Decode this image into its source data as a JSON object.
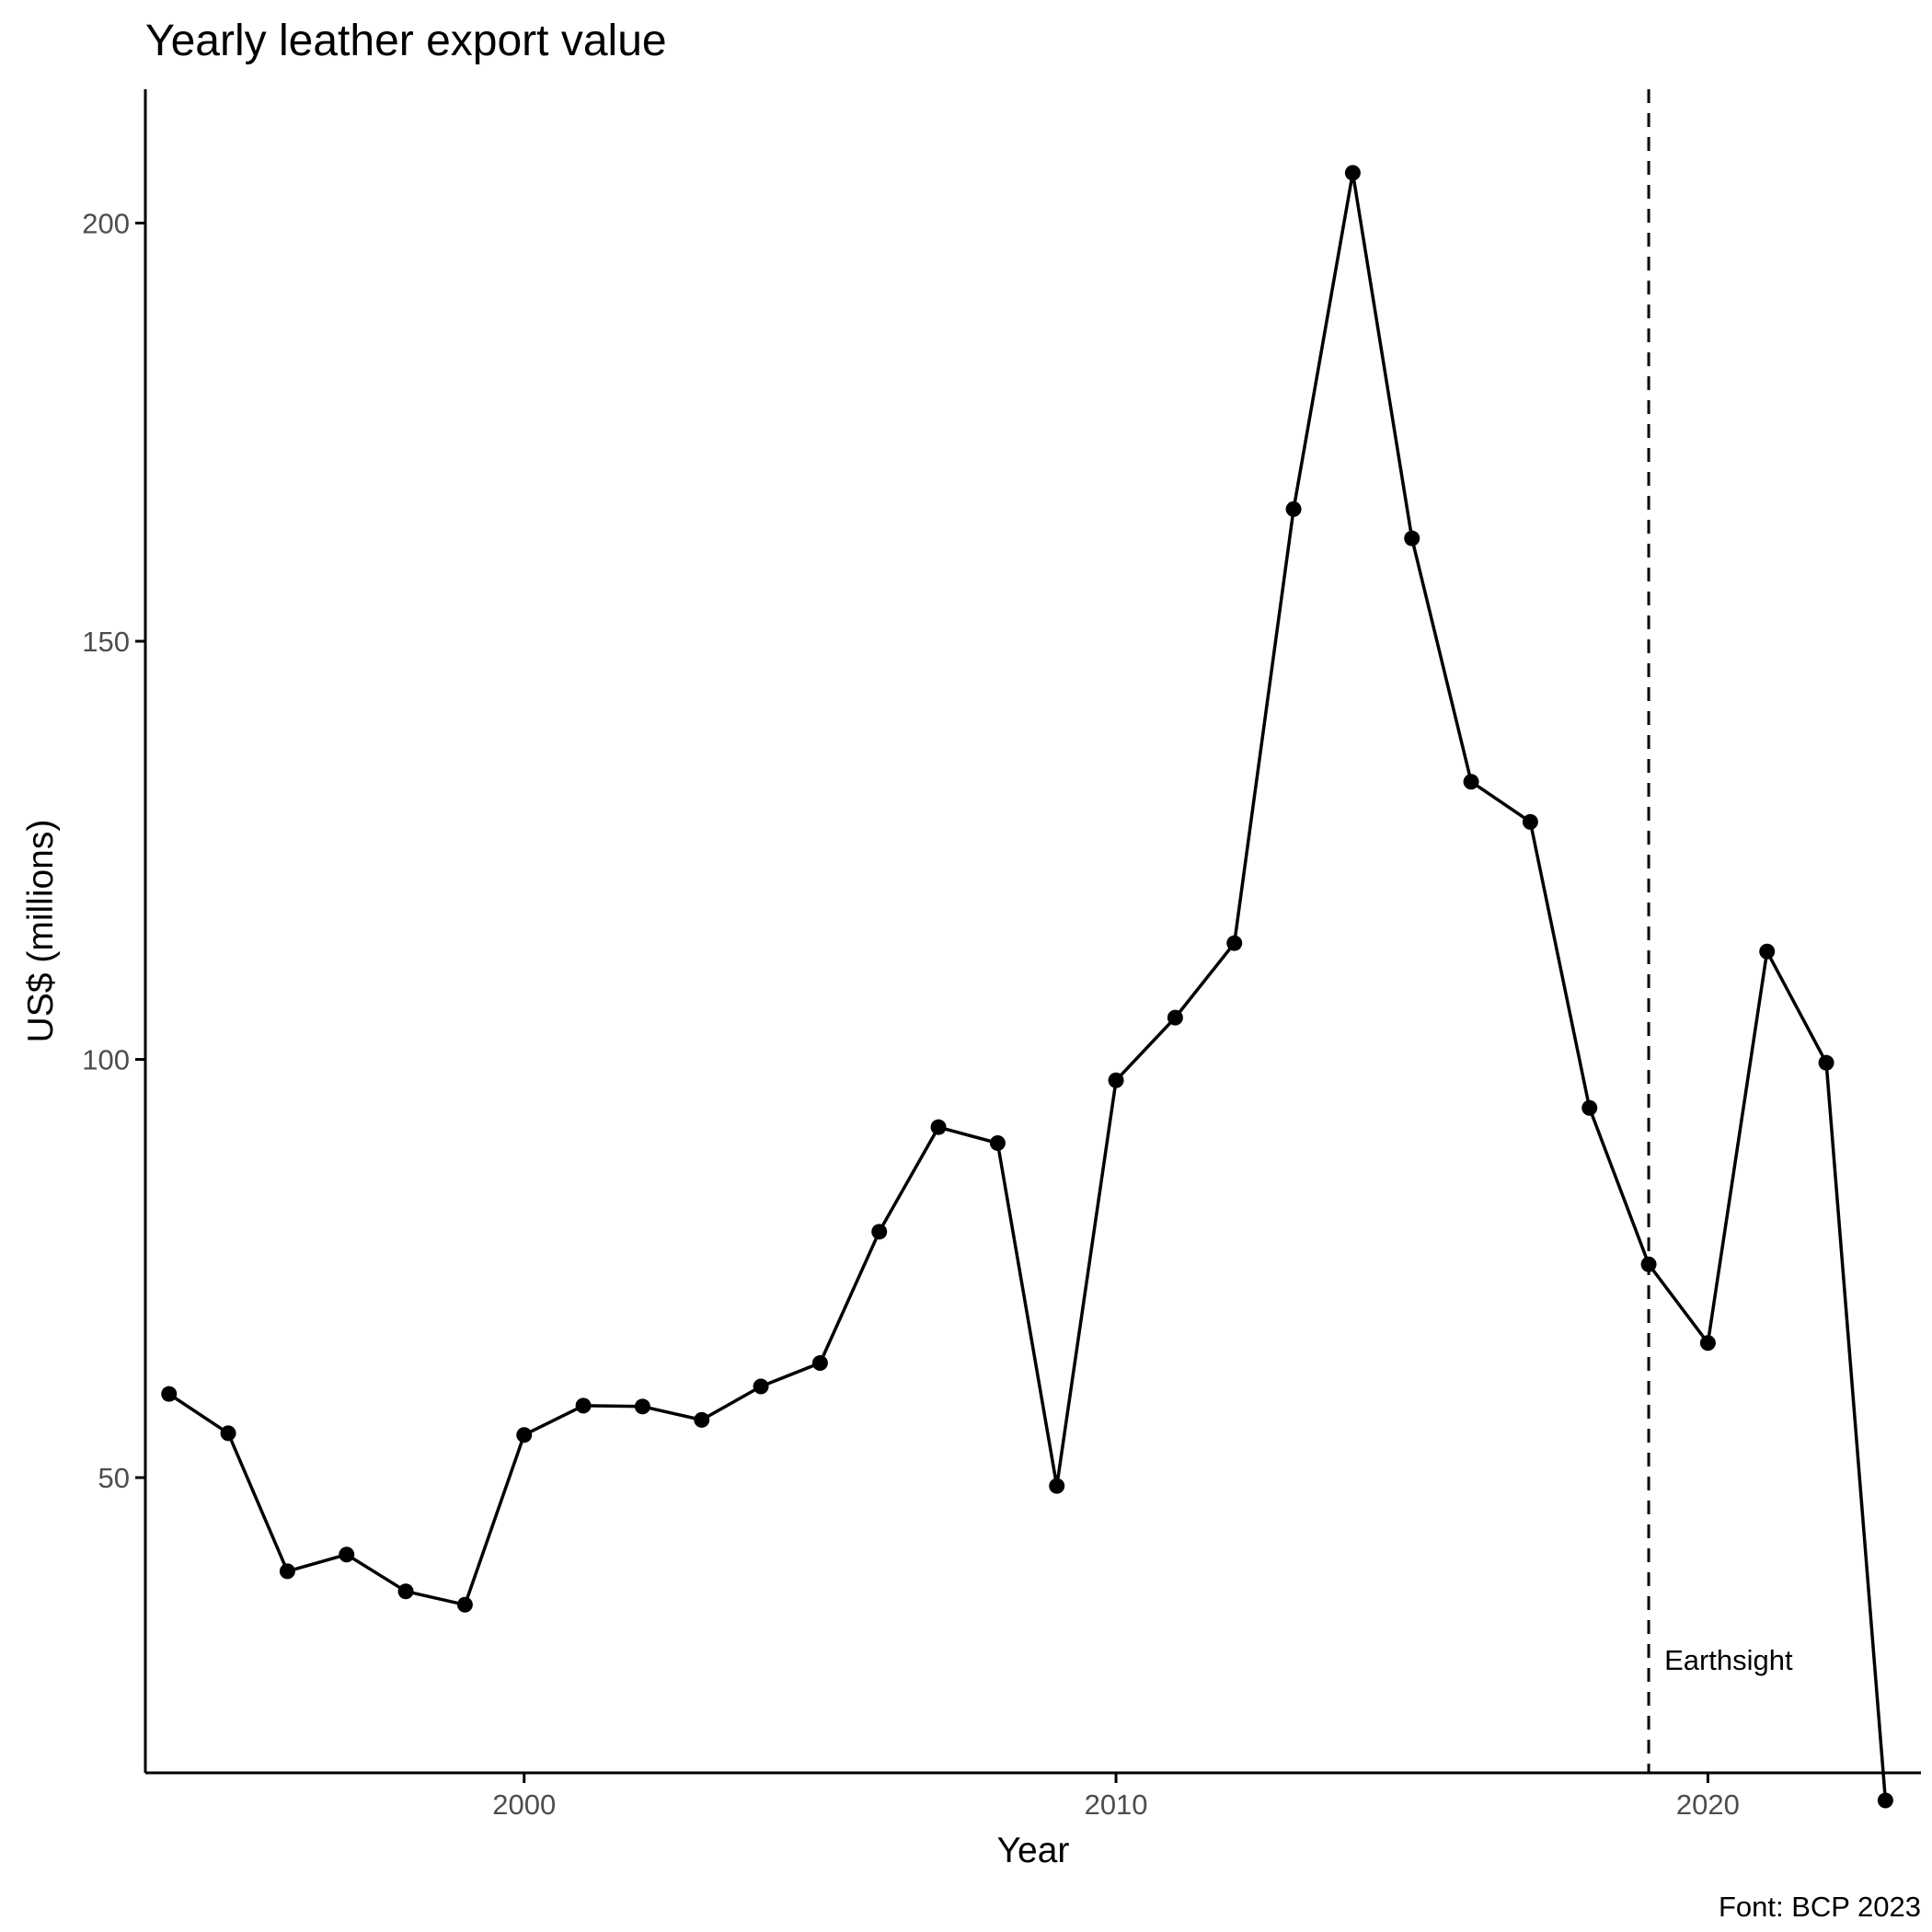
{
  "chart_data": {
    "type": "line",
    "title": "Yearly leather export value",
    "xlabel": "Year",
    "ylabel": "US$ (millions)",
    "caption": "Font: BCP 2023",
    "x": [
      1994,
      1995,
      1996,
      1997,
      1998,
      1999,
      2000,
      2001,
      2002,
      2003,
      2004,
      2005,
      2006,
      2007,
      2008,
      2009,
      2010,
      2011,
      2012,
      2013,
      2014,
      2015,
      2016,
      2017,
      2018,
      2019,
      2020,
      2021,
      2022,
      2023
    ],
    "series": [
      {
        "values": [
          60.0,
          55.3,
          38.8,
          40.8,
          36.4,
          34.8,
          55.1,
          58.6,
          58.5,
          56.9,
          60.9,
          63.7,
          79.4,
          91.9,
          90.0,
          49.0,
          97.5,
          105.0,
          113.9,
          165.8,
          206.0,
          162.3,
          133.2,
          128.4,
          94.2,
          75.5,
          66.1,
          112.9,
          99.6,
          11.4
        ]
      }
    ],
    "xlim": [
      1993.6,
      2023.6
    ],
    "ylim": [
      14.7,
      216.0
    ],
    "xticks": [
      2000,
      2010,
      2020
    ],
    "yticks": [
      50,
      100,
      150,
      200
    ],
    "vline": {
      "x": 2019,
      "style": "dashed",
      "label": "Earthsight"
    },
    "grid": false,
    "legend": "none",
    "colors": {
      "line": "#000000",
      "points": "#000000",
      "axis": "#000000",
      "tick_text": "#4d4d4d"
    }
  }
}
